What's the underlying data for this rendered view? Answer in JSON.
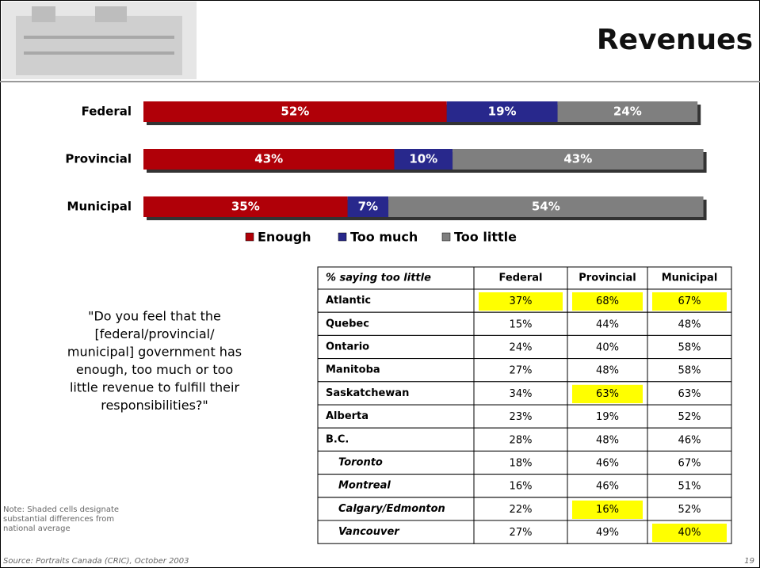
{
  "header": {
    "title": "Revenues"
  },
  "chart_data": {
    "type": "bar",
    "orientation": "horizontal",
    "stacked": true,
    "categories": [
      "Federal",
      "Provincial",
      "Municipal"
    ],
    "series": [
      {
        "name": "Enough",
        "color": "#b00008",
        "values": [
          52,
          43,
          35
        ],
        "value_labels": [
          "52%",
          "43%",
          "35%"
        ]
      },
      {
        "name": "Too much",
        "color": "#28288c",
        "values": [
          19,
          10,
          7
        ],
        "value_labels": [
          "19%",
          "10%",
          "7%"
        ]
      },
      {
        "name": "Too little",
        "color": "#7f7f7f",
        "values": [
          24,
          43,
          54
        ],
        "value_labels": [
          "24%",
          "43%",
          "54%"
        ]
      }
    ]
  },
  "question": [
    "\"Do you feel that the",
    "[federal/provincial/",
    "municipal] government has",
    "enough, too much or too",
    "little revenue to fulfill their",
    "responsibilities?\""
  ],
  "table": {
    "highlight_color": "#ffff00",
    "header": [
      "% saying too little",
      "Federal",
      "Provincial",
      "Municipal"
    ],
    "rows": [
      {
        "label": "Atlantic",
        "values": [
          "37%",
          "68%",
          "67%"
        ],
        "highlight": [
          0,
          1,
          2
        ],
        "italic": false
      },
      {
        "label": "Quebec",
        "values": [
          "15%",
          "44%",
          "48%"
        ],
        "highlight": [],
        "italic": false
      },
      {
        "label": "Ontario",
        "values": [
          "24%",
          "40%",
          "58%"
        ],
        "highlight": [],
        "italic": false
      },
      {
        "label": "Manitoba",
        "values": [
          "27%",
          "48%",
          "58%"
        ],
        "highlight": [],
        "italic": false
      },
      {
        "label": "Saskatchewan",
        "values": [
          "34%",
          "63%",
          "63%"
        ],
        "highlight": [
          1
        ],
        "italic": false
      },
      {
        "label": "Alberta",
        "values": [
          "23%",
          "19%",
          "52%"
        ],
        "highlight": [],
        "italic": false
      },
      {
        "label": "B.C.",
        "values": [
          "28%",
          "48%",
          "46%"
        ],
        "highlight": [],
        "italic": false
      },
      {
        "label": "Toronto",
        "values": [
          "18%",
          "46%",
          "67%"
        ],
        "highlight": [],
        "italic": true
      },
      {
        "label": "Montreal",
        "values": [
          "16%",
          "46%",
          "51%"
        ],
        "highlight": [],
        "italic": true
      },
      {
        "label": "Calgary/Edmonton",
        "values": [
          "22%",
          "16%",
          "52%"
        ],
        "highlight": [
          1
        ],
        "italic": true
      },
      {
        "label": "Vancouver",
        "values": [
          "27%",
          "49%",
          "40%"
        ],
        "highlight": [
          2
        ],
        "italic": true
      }
    ]
  },
  "note": [
    "Note: Shaded cells designate",
    "substantial differences from",
    "national average"
  ],
  "footer": {
    "source": "Source: Portraits Canada (CRIC), October 2003",
    "page": "19"
  }
}
